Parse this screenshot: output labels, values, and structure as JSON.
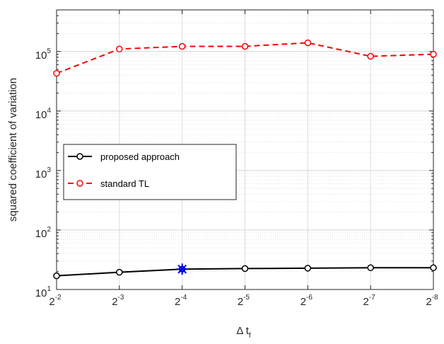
{
  "chart_data": {
    "type": "line",
    "x": [
      -2,
      -3,
      -4,
      -5,
      -6,
      -7,
      -8
    ],
    "xscale": "log2",
    "x_tick_base": "2",
    "x_tick_exponents": [
      "-2",
      "-3",
      "-4",
      "-5",
      "-6",
      "-7",
      "-8"
    ],
    "xlabel_main": "Δ t",
    "xlabel_sub": "f",
    "ylabel": "squared coefficient of variation",
    "yscale": "log",
    "ylim": [
      10,
      500000
    ],
    "y_tick_base": "10",
    "y_tick_exponents": [
      "1",
      "2",
      "3",
      "4",
      "5"
    ],
    "grid": true,
    "legend_position": "middle-left",
    "series": [
      {
        "name": "proposed approach",
        "values": [
          17,
          19.5,
          22,
          22.5,
          22.8,
          23.2,
          23.2
        ],
        "color": "#000000",
        "line_style": "solid",
        "marker": "circle"
      },
      {
        "name": "standard TL",
        "values": [
          43000,
          110000,
          122000,
          122000,
          140000,
          83000,
          90000
        ],
        "color": "#ff0000",
        "line_style": "dashed",
        "marker": "circle"
      }
    ],
    "annotations": [
      {
        "type": "star-marker",
        "x": -4,
        "y": 22,
        "color": "#0000ff"
      }
    ]
  }
}
